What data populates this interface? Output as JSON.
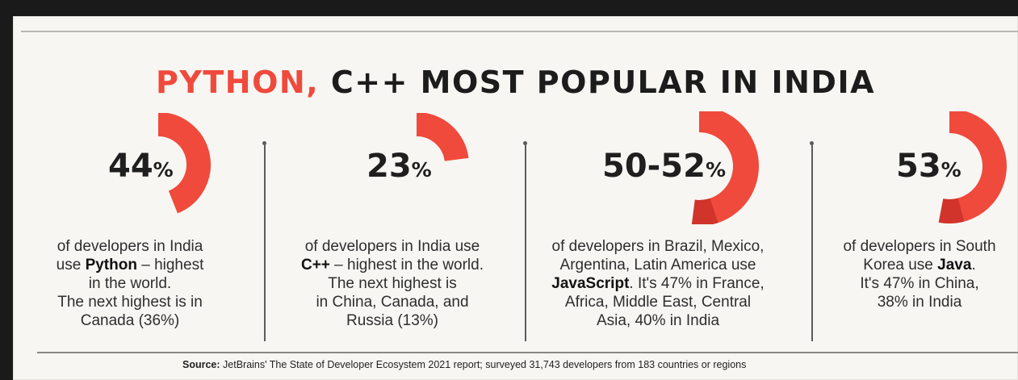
{
  "title": {
    "highlight": "PYTHON,",
    "rest": "C++ MOST POPULAR IN INDIA"
  },
  "colors": {
    "accent": "#ef4a3c",
    "accent_dark": "#b8231b",
    "text": "#1f1f1f"
  },
  "stats": [
    {
      "value": "44",
      "unit": "%",
      "fraction": 0.44,
      "line1": "of developers in India",
      "pre": "use ",
      "bold": "Python",
      "post": " – highest",
      "line3": "in the world.",
      "line4": "The next highest is in",
      "line5": "Canada (36%)"
    },
    {
      "value": "23",
      "unit": "%",
      "fraction": 0.23,
      "line1": "of developers in India use",
      "bold": "C++",
      "post": " – highest in the world.",
      "line3": "The next highest is",
      "line4": "in China, Canada, and",
      "line5": "Russia (13%)"
    },
    {
      "value": "50-52",
      "unit": "%",
      "fraction": 0.52,
      "line1": "of developers in Brazil, Mexico,",
      "line2": "Argentina, Latin America use",
      "bold": "JavaScript",
      "post": ". It's 47% in France,",
      "line4": "Africa, Middle East, Central",
      "line5": "Asia, 40% in India"
    },
    {
      "value": "53",
      "unit": "%",
      "fraction": 0.53,
      "line1": "of developers in South",
      "pre": "Korea use ",
      "bold": "Java",
      "post": ".",
      "line3": "It's 47% in China,",
      "line4": "38% in India"
    }
  ],
  "source": {
    "label": "Source:",
    "text": " JetBrains' The State of Developer Ecosystem 2021 report; surveyed 31,743 developers from 183 countries or regions"
  }
}
